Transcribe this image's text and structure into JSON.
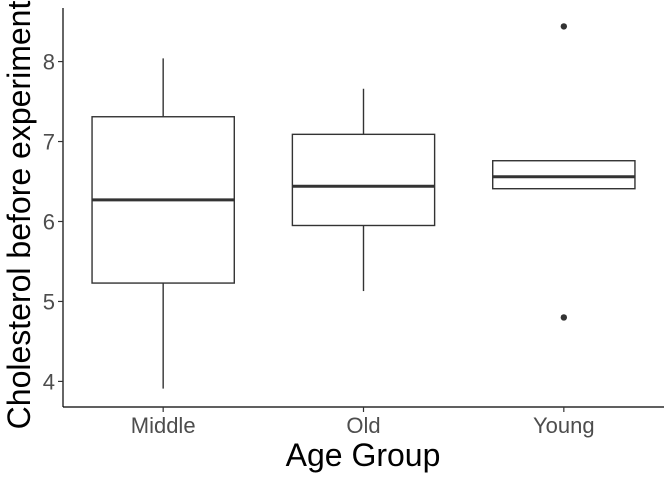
{
  "chart_data": {
    "type": "box",
    "xlabel": "Age Group",
    "ylabel": "Cholesterol before experiment",
    "categories": [
      "Middle",
      "Old",
      "Young"
    ],
    "ylim": [
      3.68,
      8.67
    ],
    "yticks": [
      "4",
      "5",
      "6",
      "7",
      "8"
    ],
    "grid": false,
    "boxes": [
      {
        "category": "Middle",
        "whisker_low": 3.91,
        "q1": 5.23,
        "median": 6.27,
        "q3": 7.31,
        "whisker_high": 8.04,
        "outliers": []
      },
      {
        "category": "Old",
        "whisker_low": 5.13,
        "q1": 5.95,
        "median": 6.44,
        "q3": 7.09,
        "whisker_high": 7.66,
        "outliers": []
      },
      {
        "category": "Young",
        "whisker_low": 6.41,
        "q1": 6.41,
        "median": 6.56,
        "q3": 6.76,
        "whisker_high": 6.76,
        "outliers": [
          4.8,
          8.44
        ]
      }
    ]
  }
}
